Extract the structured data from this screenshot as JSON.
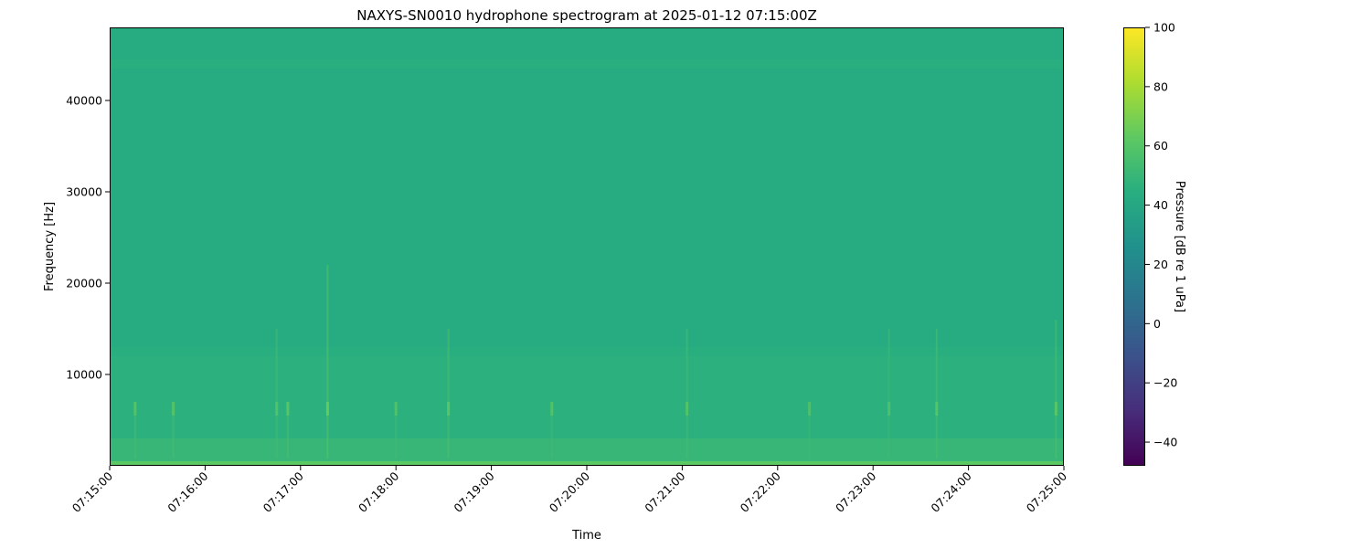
{
  "chart_data": {
    "type": "heatmap",
    "title": "NAXYS-SN0010 hydrophone spectrogram at 2025-01-12 07:15:00Z",
    "xlabel": "Time",
    "ylabel": "Frequency [Hz]",
    "colorbar_label": "Pressure [dB re 1 uPa]",
    "colormap": "viridis",
    "xlim": [
      "07:15:00",
      "07:25:00"
    ],
    "ylim": [
      0,
      48000
    ],
    "clim": [
      -48,
      100
    ],
    "x_ticks": [
      "07:15:00",
      "07:16:00",
      "07:17:00",
      "07:18:00",
      "07:19:00",
      "07:20:00",
      "07:21:00",
      "07:22:00",
      "07:23:00",
      "07:24:00",
      "07:25:00"
    ],
    "y_ticks": [
      10000,
      20000,
      30000,
      40000
    ],
    "y_tick_labels": [
      "10000",
      "20000",
      "30000",
      "40000"
    ],
    "colorbar_ticks": [
      -40,
      -20,
      0,
      20,
      40,
      60,
      80,
      100
    ],
    "colorbar_tick_labels": [
      "−40",
      "−20",
      "0",
      "20",
      "40",
      "60",
      "80",
      "100"
    ],
    "spectrum_bands": [
      {
        "f_min": 0,
        "f_max": 500,
        "level_db": 62
      },
      {
        "f_min": 500,
        "f_max": 3000,
        "level_db": 50
      },
      {
        "f_min": 3000,
        "f_max": 12000,
        "level_db": 46
      },
      {
        "f_min": 12000,
        "f_max": 13000,
        "level_db": 45
      },
      {
        "f_min": 13000,
        "f_max": 43500,
        "level_db": 43
      },
      {
        "f_min": 43500,
        "f_max": 44500,
        "level_db": 45
      },
      {
        "f_min": 44500,
        "f_max": 48000,
        "level_db": 43
      }
    ],
    "transients": [
      {
        "time": "07:15:16",
        "f_max": 7000,
        "level_db": 55
      },
      {
        "time": "07:15:40",
        "f_max": 7000,
        "level_db": 55
      },
      {
        "time": "07:16:45",
        "f_max": 15000,
        "level_db": 54
      },
      {
        "time": "07:16:52",
        "f_max": 7000,
        "level_db": 56
      },
      {
        "time": "07:17:17",
        "f_max": 22000,
        "level_db": 60
      },
      {
        "time": "07:18:00",
        "f_max": 7000,
        "level_db": 54
      },
      {
        "time": "07:18:33",
        "f_max": 15000,
        "level_db": 57
      },
      {
        "time": "07:19:38",
        "f_max": 7000,
        "level_db": 54
      },
      {
        "time": "07:21:03",
        "f_max": 15000,
        "level_db": 55
      },
      {
        "time": "07:22:20",
        "f_max": 7000,
        "level_db": 53
      },
      {
        "time": "07:23:10",
        "f_max": 15000,
        "level_db": 53
      },
      {
        "time": "07:23:40",
        "f_max": 15000,
        "level_db": 56
      },
      {
        "time": "07:24:55",
        "f_max": 16000,
        "level_db": 57
      }
    ]
  }
}
